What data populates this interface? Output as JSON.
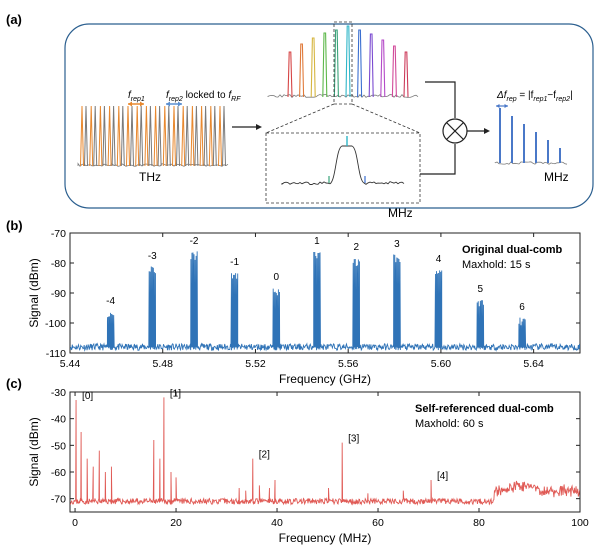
{
  "figure": {
    "panel_a": {
      "label": "(a)",
      "frep1": "f",
      "frep1_sub": "rep1",
      "frep2": "f",
      "frep2_sub": "rep2",
      "locked_to": " locked to ",
      "frf": "f",
      "frf_sub": "RF",
      "thz": "THz",
      "mhz_inset": "MHz",
      "mhz_right": "MHz",
      "delta_frep": "Δf",
      "delta_frep_sub": "rep",
      "delta_frep_eq": " = |f",
      "delta_frep_eq_sub1": "rep1",
      "delta_frep_minus": "−f",
      "delta_frep_eq_sub2": "rep2",
      "delta_frep_close": "|",
      "colors": {
        "comb_orange": "#e8882e",
        "comb_blue": "#5a8fd0",
        "comb_gray": "#7a7a7a",
        "frame": "#2b5f8f",
        "dual": "#4a78c8"
      },
      "rainbow_colors": [
        "#d64545",
        "#e07a3a",
        "#d6b640",
        "#5db84a",
        "#3aa37a",
        "#2fb6c8",
        "#3a6fd0",
        "#7a4ad0",
        "#b44ac8",
        "#d24a9a",
        "#cc3a5a"
      ]
    },
    "panel_b_label": "(b)",
    "panel_c_label": "(c)"
  },
  "chart_data": [
    {
      "type": "line",
      "title": "Original dual-comb",
      "subtitle": "Maxhold: 15 s",
      "xlabel": "Frequency (GHz)",
      "ylabel": "Signal (dBm)",
      "xlim": [
        5.44,
        5.66
      ],
      "ylim": [
        -110,
        -70
      ],
      "xticks": [
        5.44,
        5.48,
        5.52,
        5.56,
        5.6,
        5.64
      ],
      "xtick_labels": [
        "5.44",
        "5.48",
        "5.52",
        "5.56",
        "5.60",
        "5.64"
      ],
      "yticks": [
        -110,
        -100,
        -90,
        -80,
        -70
      ],
      "ytick_labels": [
        "-110",
        "-100",
        "-90",
        "-80",
        "-70"
      ],
      "color": "#2f73b7",
      "noise_floor": -108,
      "peaks": [
        {
          "label": "-4",
          "x": 5.4575,
          "y": -96
        },
        {
          "label": "-3",
          "x": 5.4755,
          "y": -81
        },
        {
          "label": "-2",
          "x": 5.4935,
          "y": -76
        },
        {
          "label": "-1",
          "x": 5.511,
          "y": -83
        },
        {
          "label": "0",
          "x": 5.529,
          "y": -88
        },
        {
          "label": "1",
          "x": 5.5465,
          "y": -76
        },
        {
          "label": "2",
          "x": 5.5635,
          "y": -78
        },
        {
          "label": "3",
          "x": 5.581,
          "y": -77
        },
        {
          "label": "4",
          "x": 5.599,
          "y": -82
        },
        {
          "label": "5",
          "x": 5.617,
          "y": -92
        },
        {
          "label": "6",
          "x": 5.635,
          "y": -98
        }
      ]
    },
    {
      "type": "line",
      "title": "Self-referenced dual-comb",
      "subtitle": "Maxhold: 60 s",
      "xlabel": "Frequency (MHz)",
      "ylabel": "Signal (dBm)",
      "xlim": [
        -1,
        100
      ],
      "ylim": [
        -75,
        -30
      ],
      "xticks": [
        0,
        20,
        40,
        60,
        80,
        100
      ],
      "xtick_labels": [
        "0",
        "20",
        "40",
        "60",
        "80",
        "100"
      ],
      "yticks": [
        -70,
        -60,
        -50,
        -40,
        -30
      ],
      "ytick_labels": [
        "-70",
        "-60",
        "-50",
        "-40",
        "-30"
      ],
      "color": "#e05a55",
      "noise_floor": -71,
      "peaks": [
        {
          "label": "[0]",
          "x": 0.2,
          "y": -33
        },
        {
          "label": "[1]",
          "x": 17.6,
          "y": -32
        },
        {
          "label": "[2]",
          "x": 35.2,
          "y": -55
        },
        {
          "label": "[3]",
          "x": 52.9,
          "y": -49
        },
        {
          "label": "[4]",
          "x": 70.5,
          "y": -63
        }
      ]
    }
  ]
}
